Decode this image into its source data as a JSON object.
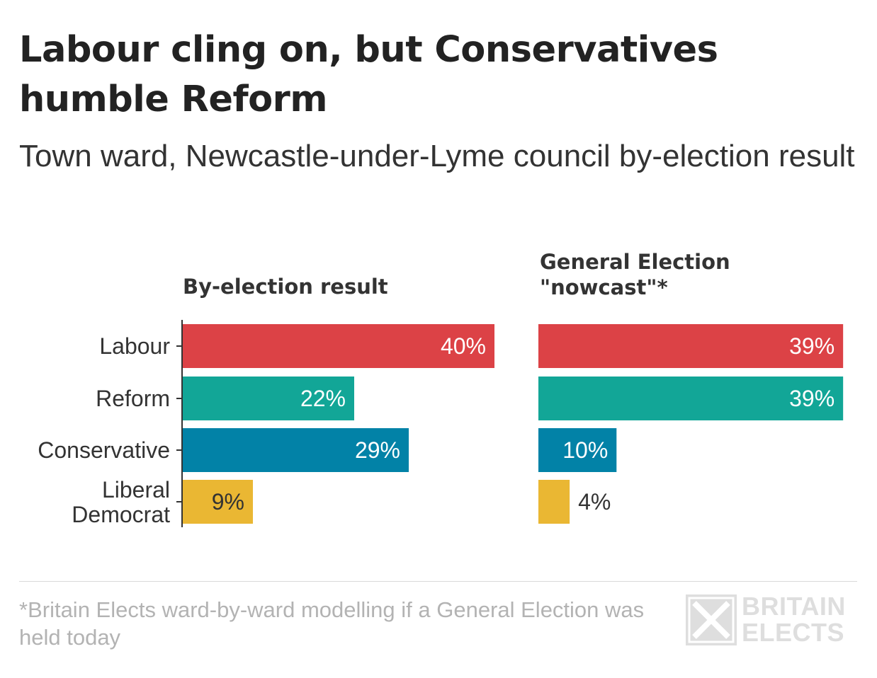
{
  "title": "Labour cling on, but Conservatives humble Reform",
  "subtitle": "Town ward, Newcastle-under-Lyme council by-election result",
  "footnote": "*Britain Elects ward-by-ward modelling if a General Election was held today",
  "logo": {
    "line1": "BRITAIN",
    "line2": "ELECTS"
  },
  "colors": {
    "Labour": "#dc4246",
    "Reform": "#12a697",
    "Conservative": "#0282a7",
    "Liberal Democrat": "#eab733",
    "label_inside": "#ffffff",
    "label_dark": "#333333"
  },
  "chart_data": {
    "type": "bar",
    "orientation": "horizontal",
    "categories": [
      "Labour",
      "Reform",
      "Conservative",
      "Liberal Democrat"
    ],
    "panels": [
      {
        "title": "By-election result",
        "values": [
          40,
          22,
          29,
          9
        ],
        "labels": [
          "40%",
          "22%",
          "29%",
          "9%"
        ]
      },
      {
        "title": "General Election \"nowcast\"*",
        "values": [
          39,
          39,
          10,
          4
        ],
        "labels": [
          "39%",
          "39%",
          "10%",
          "4%"
        ]
      }
    ],
    "xlim": [
      0,
      40
    ],
    "grid": false,
    "legend": "none"
  }
}
